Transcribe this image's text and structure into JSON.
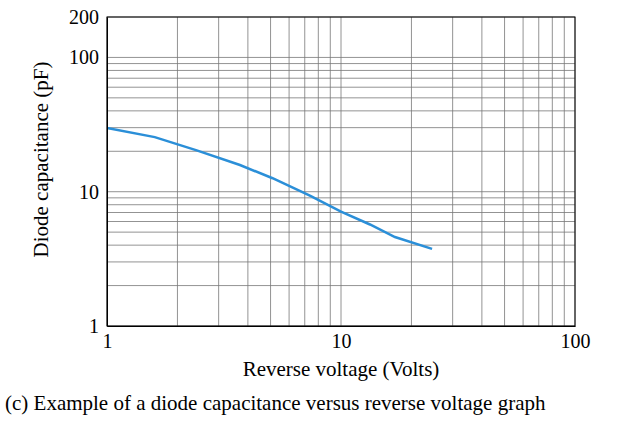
{
  "chart_data": {
    "type": "line",
    "caption": "(c) Example of a diode capacitance versus reverse voltage graph",
    "x_label": "Reverse voltage (Volts)",
    "y_label": "Diode capacitance (pF)",
    "x": [
      1,
      1.6,
      2.4,
      3.7,
      5.1,
      7.4,
      10,
      13.3,
      17,
      24.5
    ],
    "values": [
      29.8,
      25.5,
      20.4,
      15.8,
      12.6,
      9.3,
      7.1,
      5.7,
      4.6,
      3.75
    ],
    "color": "#2b8fd8",
    "log": true,
    "grid": true,
    "xlim": [
      1,
      100
    ],
    "xticks": [
      1,
      10,
      100
    ],
    "x_minor_ticks": [
      2,
      3,
      4,
      5,
      6,
      7,
      8,
      9,
      20,
      30,
      40,
      50,
      60,
      70,
      80,
      90
    ],
    "ylim": [
      1,
      200
    ],
    "yticks": [
      1,
      10,
      100,
      200
    ],
    "y_minor_ticks": [
      2,
      3,
      4,
      5,
      6,
      7,
      8,
      9,
      20,
      30,
      40,
      50,
      60,
      70,
      80,
      90
    ]
  }
}
